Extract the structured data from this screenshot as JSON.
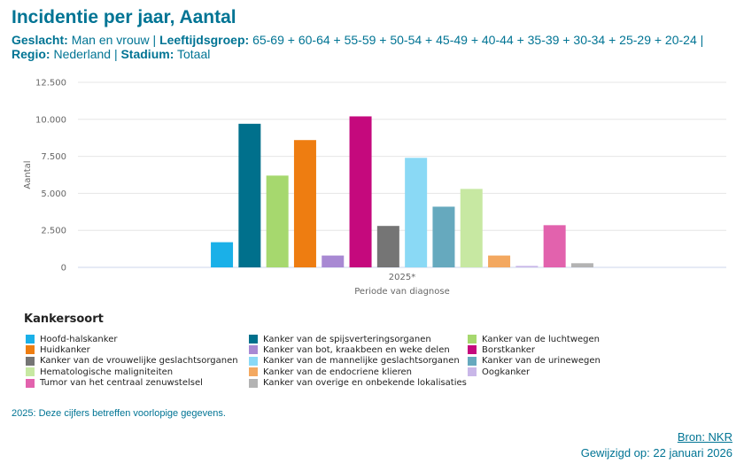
{
  "header": {
    "title": "Incidentie per jaar, Aantal",
    "filters": [
      {
        "label": "Geslacht:",
        "value": " Man en vrouw | "
      },
      {
        "label": "Leeftijdsgroep:",
        "value": " 65-69 + 60-64 + 55-59 + 50-54 + 45-49 + 40-44 + 35-39 + 30-34 + 25-29 + 20-24 | "
      },
      {
        "label": "Regio:",
        "value": " Nederland | "
      },
      {
        "label": "Stadium:",
        "value": " Totaal"
      }
    ]
  },
  "chart_data": {
    "type": "bar",
    "categories": [
      "2025*"
    ],
    "xlabel": "Periode van diagnose",
    "ylabel": "Aantal",
    "ylim": [
      0,
      12500
    ],
    "yticks": [
      0,
      2500,
      5000,
      7500,
      10000,
      12500
    ],
    "ytick_labels": [
      "0",
      "2.500",
      "5.000",
      "7.500",
      "10.000",
      "12.500"
    ],
    "grid": true,
    "legend_title": "Kankersoort",
    "legend_position": "bottom",
    "series": [
      {
        "name": "Hoofd-halskanker",
        "color": "#1ab0e8",
        "values": [
          1700
        ]
      },
      {
        "name": "Kanker van de spijsverteringsorganen",
        "color": "#00708c",
        "values": [
          9700
        ]
      },
      {
        "name": "Kanker van de luchtwegen",
        "color": "#a6d86e",
        "values": [
          6200
        ]
      },
      {
        "name": "Huidkanker",
        "color": "#ee7d11",
        "values": [
          8600
        ]
      },
      {
        "name": "Kanker van bot, kraakbeen en weke delen",
        "color": "#a889d3",
        "values": [
          800
        ]
      },
      {
        "name": "Borstkanker",
        "color": "#c5097d",
        "values": [
          10200
        ]
      },
      {
        "name": "Kanker van de vrouwelijke geslachtsorganen",
        "color": "#757575",
        "values": [
          2800
        ]
      },
      {
        "name": "Kanker van de mannelijke geslachtsorganen",
        "color": "#8ad9f5",
        "values": [
          7400
        ]
      },
      {
        "name": "Kanker van de urinewegen",
        "color": "#66a9be",
        "values": [
          4100
        ]
      },
      {
        "name": "Hematologische maligniteiten",
        "color": "#c7e8a2",
        "values": [
          5300
        ]
      },
      {
        "name": "Kanker van de endocriene klieren",
        "color": "#f3a860",
        "values": [
          800
        ]
      },
      {
        "name": "Oogkanker",
        "color": "#c9b7e8",
        "values": [
          100
        ]
      },
      {
        "name": "Tumor van het centraal zenuwstelsel",
        "color": "#e262ad",
        "values": [
          2850
        ]
      },
      {
        "name": "Kanker van overige en onbekende lokalisaties",
        "color": "#b3b3b3",
        "values": [
          280
        ]
      }
    ]
  },
  "footer": {
    "footnote": "2025: Deze cijfers betreffen voorlopige gegevens.",
    "source": "Bron: NKR",
    "updated": "Gewijzigd op: 22 januari 2026"
  }
}
